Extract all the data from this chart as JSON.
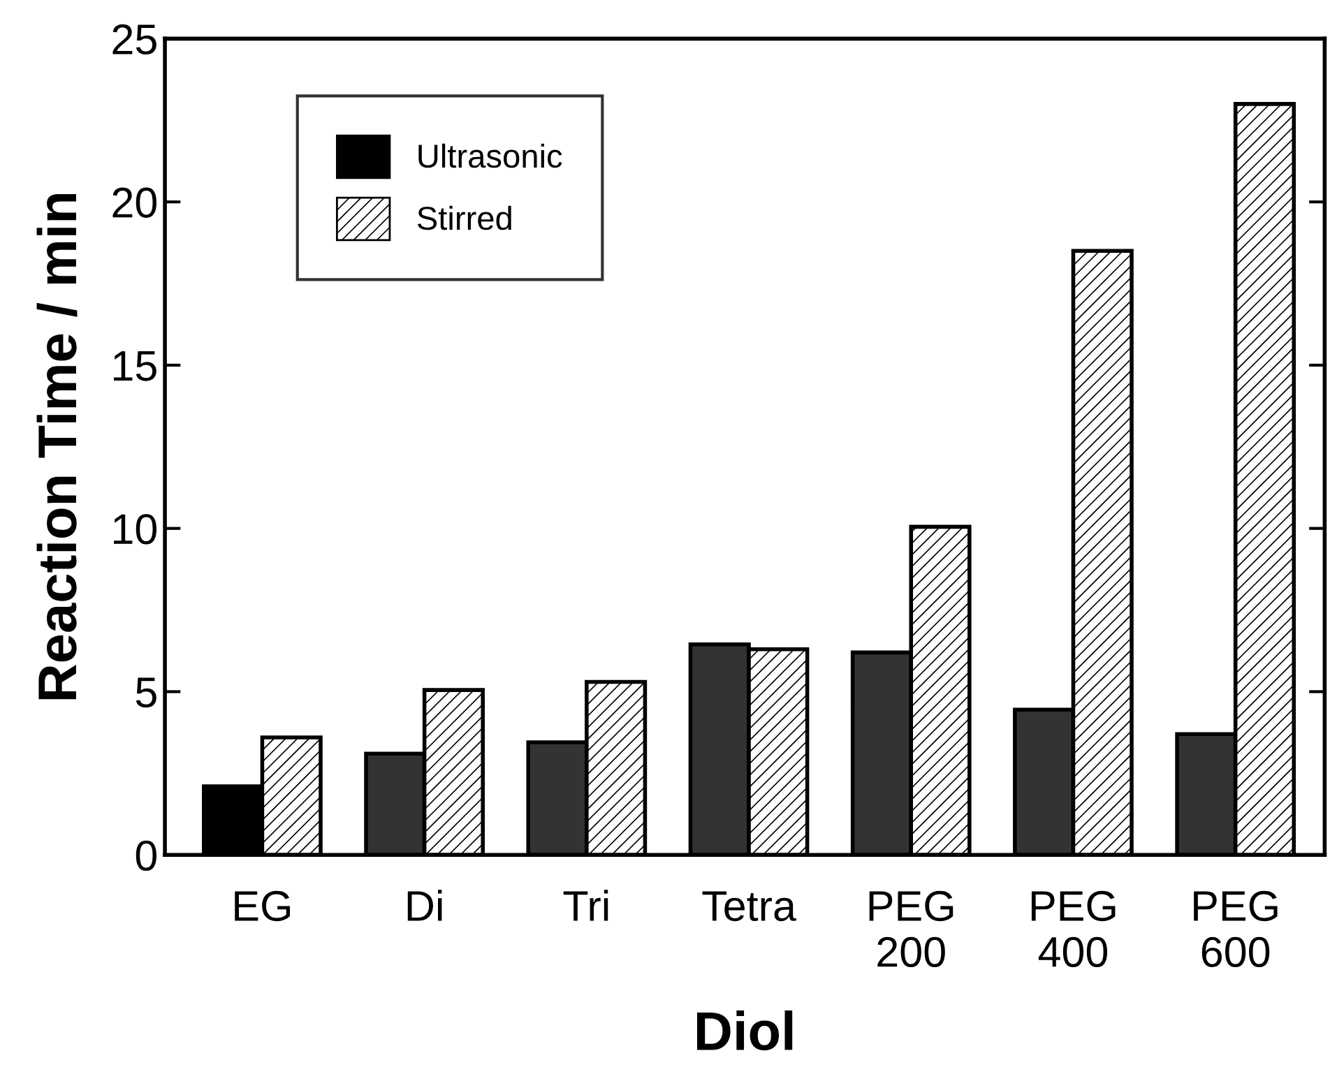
{
  "chart_data": {
    "type": "bar",
    "xlabel": "Diol",
    "ylabel": "Reaction Time / min",
    "categories": [
      "EG",
      "Di",
      "Tri",
      "Tetra",
      "PEG\n200",
      "PEG\n400",
      "PEG\n600"
    ],
    "series": [
      {
        "name": "Ultrasonic",
        "color": "#000000",
        "colors": [
          "#000000",
          "#333333",
          "#333333",
          "#333333",
          "#333333",
          "#333333",
          "#333333"
        ],
        "values": [
          2.1,
          3.1,
          3.45,
          6.45,
          6.2,
          4.45,
          3.7
        ]
      },
      {
        "name": "Stirred",
        "color": "#000000",
        "values": [
          3.6,
          5.05,
          5.3,
          6.3,
          10.05,
          18.5,
          23.0
        ]
      }
    ],
    "ylim": [
      0,
      25
    ],
    "yticks": [
      0,
      5,
      10,
      15,
      20,
      25
    ],
    "grid": false,
    "legend": "top left"
  }
}
